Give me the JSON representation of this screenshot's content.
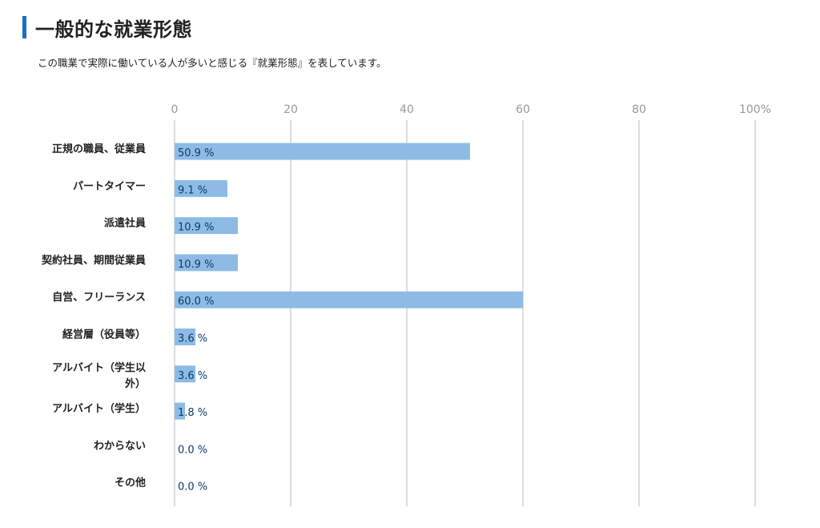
{
  "header": {
    "title": "一般的な就業形態",
    "description": "この職業で実際に働いている人が多いと感じる『就業形態』を表しています。"
  },
  "colors": {
    "accent": "#1a6fc4",
    "bar": "#8ebbe4",
    "value_label": "#0b3d6e",
    "grid": "#dddddd",
    "tick": "#999999"
  },
  "chart_data": {
    "type": "bar",
    "orientation": "horizontal",
    "categories": [
      [
        "正規の職員、従業員"
      ],
      [
        "パートタイマー"
      ],
      [
        "派遣社員"
      ],
      [
        "契約社員、期間従業員"
      ],
      [
        "自営、フリーランス"
      ],
      [
        "経営層（役員等）"
      ],
      [
        "アルバイト（学生以",
        "外）"
      ],
      [
        "アルバイト（学生）"
      ],
      [
        "わからない"
      ],
      [
        "その他"
      ]
    ],
    "values": [
      50.9,
      9.1,
      10.9,
      10.9,
      60.0,
      3.6,
      3.6,
      1.8,
      0.0,
      0.0
    ],
    "value_labels": [
      "50.9 %",
      "9.1 %",
      "10.9 %",
      "10.9 %",
      "60.0 %",
      "3.6 %",
      "3.6 %",
      "1.8 %",
      "0.0 %",
      "0.0 %"
    ],
    "xlim": [
      0,
      100
    ],
    "x_ticks": [
      "0",
      "20",
      "40",
      "60",
      "80",
      "100%"
    ],
    "grid": true
  }
}
